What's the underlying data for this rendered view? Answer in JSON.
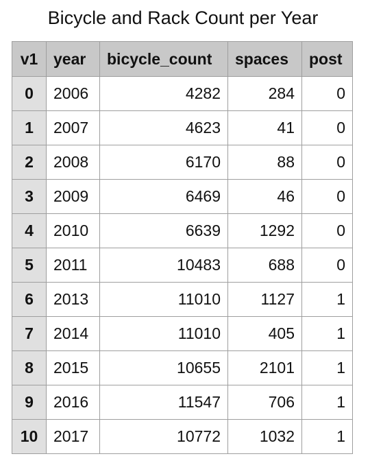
{
  "title": "Bicycle and Rack Count per Year",
  "chart_data": {
    "type": "table",
    "title": "Bicycle and Rack Count per Year",
    "columns": [
      "v1",
      "year",
      "bicycle_count",
      "spaces",
      "post"
    ],
    "rows": [
      [
        "0",
        "2006",
        "4282",
        "284",
        "0"
      ],
      [
        "1",
        "2007",
        "4623",
        "41",
        "0"
      ],
      [
        "2",
        "2008",
        "6170",
        "88",
        "0"
      ],
      [
        "3",
        "2009",
        "6469",
        "46",
        "0"
      ],
      [
        "4",
        "2010",
        "6639",
        "1292",
        "0"
      ],
      [
        "5",
        "2011",
        "10483",
        "688",
        "0"
      ],
      [
        "6",
        "2013",
        "11010",
        "1127",
        "1"
      ],
      [
        "7",
        "2014",
        "11010",
        "405",
        "1"
      ],
      [
        "8",
        "2015",
        "10655",
        "2101",
        "1"
      ],
      [
        "9",
        "2016",
        "11547",
        "706",
        "1"
      ],
      [
        "10",
        "2017",
        "10772",
        "1032",
        "1"
      ]
    ]
  }
}
